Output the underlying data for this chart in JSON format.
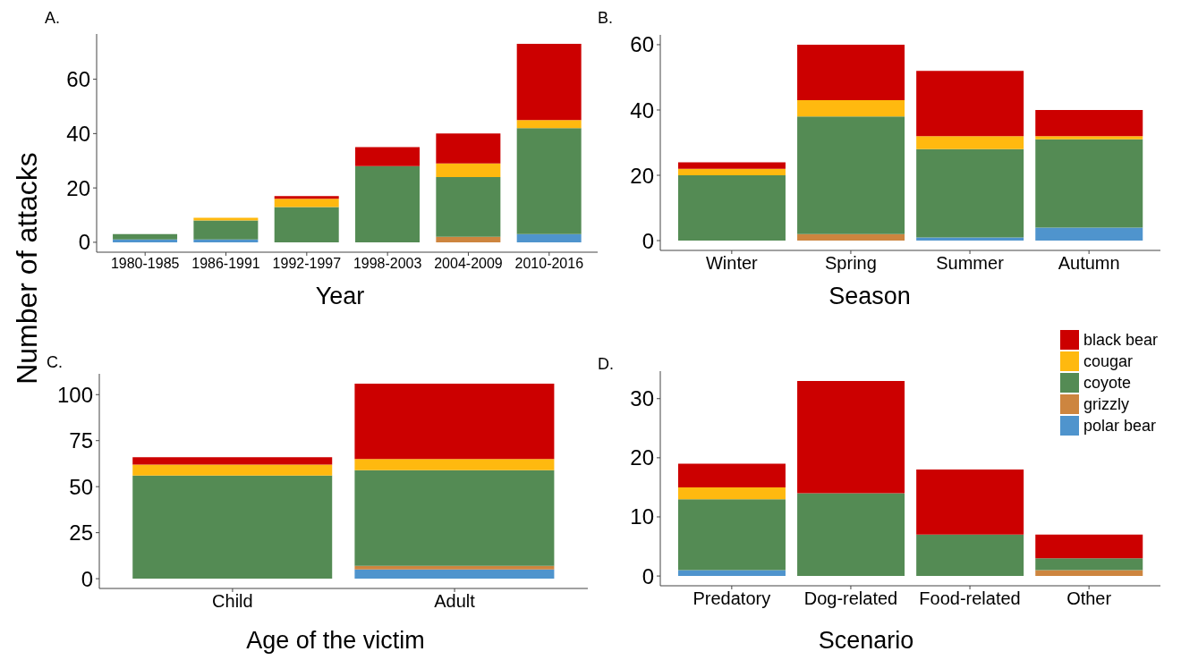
{
  "chart_data": [
    {
      "type": "bar",
      "title": "A.",
      "xlabel": "Year",
      "ylabel": "Number of attacks",
      "stacked": true,
      "categories": [
        "1980-1985",
        "1986-1991",
        "1992-1997",
        "1998-2003",
        "2004-2009",
        "2010-2016"
      ],
      "series": [
        {
          "color": "#4f94cd",
          "values": [
            1,
            1,
            0,
            0,
            0,
            3
          ]
        },
        {
          "color": "#cd853f",
          "values": [
            0,
            0,
            0,
            0,
            2,
            0
          ]
        },
        {
          "color": "#548b54",
          "values": [
            2,
            7,
            13,
            28,
            22,
            39
          ]
        },
        {
          "color": "#ffb90f",
          "values": [
            0,
            1,
            3,
            0,
            5,
            3
          ]
        },
        {
          "color": "#cc0000",
          "values": [
            0,
            0,
            1,
            7,
            11,
            28
          ]
        }
      ],
      "ylim": [
        -3.65,
        76.65
      ],
      "yticks": [
        0,
        20,
        40,
        60
      ]
    },
    {
      "type": "bar",
      "title": "B.",
      "xlabel": "Season",
      "stacked": true,
      "categories": [
        "Winter",
        "Spring",
        "Summer",
        "Autumn"
      ],
      "series": [
        {
          "color": "#4f94cd",
          "values": [
            0,
            0,
            1,
            4
          ]
        },
        {
          "color": "#cd853f",
          "values": [
            0,
            2,
            0,
            0
          ]
        },
        {
          "color": "#548b54",
          "values": [
            20,
            36,
            27,
            27
          ]
        },
        {
          "color": "#ffb90f",
          "values": [
            2,
            5,
            4,
            1
          ]
        },
        {
          "color": "#cc0000",
          "values": [
            2,
            17,
            20,
            8
          ]
        }
      ],
      "ylim": [
        -3,
        63
      ],
      "yticks": [
        0,
        20,
        40,
        60
      ]
    },
    {
      "type": "bar",
      "title": "C.",
      "xlabel": "Age of the victim",
      "stacked": true,
      "categories": [
        "Child",
        "Adult"
      ],
      "series": [
        {
          "color": "#4f94cd",
          "values": [
            0,
            5
          ]
        },
        {
          "color": "#cd853f",
          "values": [
            0,
            2
          ]
        },
        {
          "color": "#548b54",
          "values": [
            56,
            52
          ]
        },
        {
          "color": "#ffb90f",
          "values": [
            6,
            6
          ]
        },
        {
          "color": "#cc0000",
          "values": [
            4,
            41
          ]
        }
      ],
      "ylim": [
        -5.3,
        111.3
      ],
      "yticks": [
        0,
        25,
        50,
        75,
        100
      ]
    },
    {
      "type": "bar",
      "title": "D.",
      "xlabel": "Scenario",
      "stacked": true,
      "legend": "top right",
      "categories": [
        "Predatory",
        "Dog-related",
        "Food-related",
        "Other"
      ],
      "series": [
        {
          "name": "polar bear",
          "color": "#4f94cd",
          "values": [
            1,
            0,
            0,
            0
          ]
        },
        {
          "name": "grizzly",
          "color": "#cd853f",
          "values": [
            0,
            0,
            0,
            1
          ]
        },
        {
          "name": "coyote",
          "color": "#548b54",
          "values": [
            12,
            14,
            7,
            2
          ]
        },
        {
          "name": "cougar",
          "color": "#ffb90f",
          "values": [
            2,
            0,
            0,
            0
          ]
        },
        {
          "name": "black bear",
          "color": "#cc0000",
          "values": [
            4,
            19,
            11,
            4
          ]
        }
      ],
      "ylim": [
        -1.65,
        34.65
      ],
      "yticks": [
        0,
        10,
        20,
        30
      ]
    }
  ]
}
